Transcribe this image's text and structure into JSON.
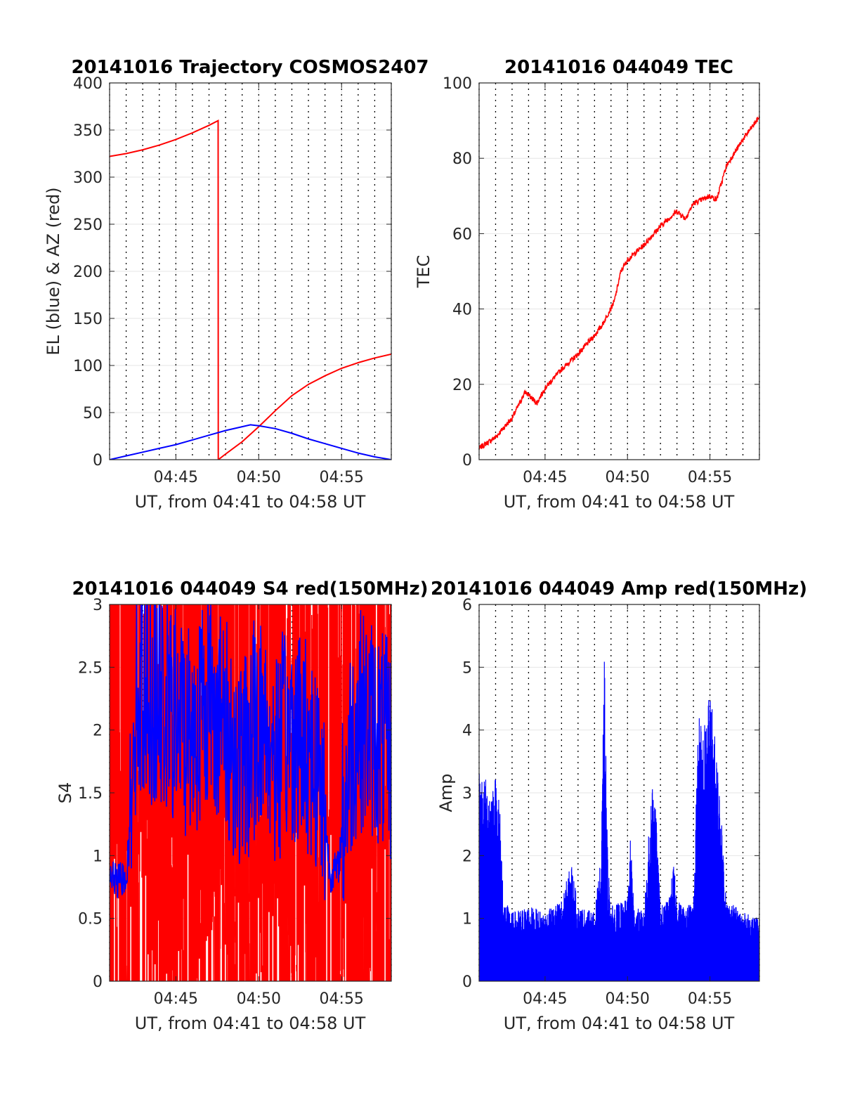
{
  "chart_data": [
    {
      "type": "line",
      "title": "20141016 Trajectory COSMOS2407",
      "xlabel": "UT, from 04:41 to 04:58 UT",
      "ylabel": "EL (blue) & AZ (red)",
      "xlim": [
        0,
        17
      ],
      "ylim": [
        0,
        400
      ],
      "x_ticks": [
        {
          "value": 4,
          "label": "04:45"
        },
        {
          "value": 9,
          "label": "04:50"
        },
        {
          "value": 14,
          "label": "04:55"
        }
      ],
      "y_ticks": [
        {
          "value": 0,
          "label": "0"
        },
        {
          "value": 50,
          "label": "50"
        },
        {
          "value": 100,
          "label": "100"
        },
        {
          "value": 150,
          "label": "150"
        },
        {
          "value": 200,
          "label": "200"
        },
        {
          "value": 250,
          "label": "250"
        },
        {
          "value": 300,
          "label": "300"
        },
        {
          "value": 350,
          "label": "350"
        },
        {
          "value": 400,
          "label": "400"
        }
      ],
      "grid": true,
      "series": [
        {
          "color": "#ff0000",
          "x": [
            0,
            1,
            2,
            3,
            4,
            5,
            6,
            6.55,
            6.56,
            7,
            8,
            9,
            10,
            11,
            12,
            13,
            14,
            15,
            16,
            17
          ],
          "values": [
            322,
            325,
            329,
            334,
            340,
            347,
            355,
            360,
            0,
            6,
            19,
            35,
            52,
            68,
            80,
            89,
            97,
            103,
            108,
            112
          ]
        },
        {
          "color": "#0000ff",
          "x": [
            0,
            1,
            2,
            3,
            4,
            5,
            6,
            7,
            8,
            8.5,
            9,
            10,
            11,
            12,
            13,
            14,
            15,
            16,
            17
          ],
          "values": [
            0,
            4,
            8,
            12,
            16,
            21,
            26,
            31,
            35,
            37,
            36,
            33,
            28,
            22,
            17,
            12,
            7,
            3,
            0
          ]
        }
      ]
    },
    {
      "type": "line",
      "title": "20141016 044049 TEC",
      "xlabel": "UT, from 04:41 to 04:58 UT",
      "ylabel": "TEC",
      "xlim": [
        0,
        17
      ],
      "ylim": [
        0,
        100
      ],
      "x_ticks": [
        {
          "value": 4,
          "label": "04:45"
        },
        {
          "value": 9,
          "label": "04:50"
        },
        {
          "value": 14,
          "label": "04:55"
        }
      ],
      "y_ticks": [
        {
          "value": 0,
          "label": "0"
        },
        {
          "value": 20,
          "label": "20"
        },
        {
          "value": 40,
          "label": "40"
        },
        {
          "value": 60,
          "label": "60"
        },
        {
          "value": 80,
          "label": "80"
        },
        {
          "value": 100,
          "label": "100"
        }
      ],
      "grid": true,
      "series": [
        {
          "color": "#ff0000",
          "noise": 0.7,
          "x": [
            0,
            1,
            2,
            2.8,
            3.5,
            4,
            5,
            6,
            7,
            7.5,
            8.2,
            8.6,
            9,
            10,
            11,
            12,
            12.5,
            13,
            14,
            14.4,
            15,
            16,
            17
          ],
          "values": [
            3,
            6,
            11,
            18,
            15,
            19,
            24,
            28,
            33,
            36,
            42,
            50,
            53,
            57,
            62,
            66,
            64,
            68,
            70,
            69,
            78,
            85,
            91
          ]
        }
      ]
    },
    {
      "type": "line",
      "title": "20141016 044049 S4 red(150MHz)",
      "xlabel": "UT, from 04:41 to 04:58 UT",
      "ylabel": "S4",
      "xlim": [
        0,
        17
      ],
      "ylim": [
        0,
        3
      ],
      "x_ticks": [
        {
          "value": 4,
          "label": "04:45"
        },
        {
          "value": 9,
          "label": "04:50"
        },
        {
          "value": 14,
          "label": "04:55"
        }
      ],
      "y_ticks": [
        {
          "value": 0,
          "label": "0"
        },
        {
          "value": 0.5,
          "label": "0.5"
        },
        {
          "value": 1,
          "label": "1"
        },
        {
          "value": 1.5,
          "label": "1.5"
        },
        {
          "value": 2,
          "label": "2"
        },
        {
          "value": 2.5,
          "label": "2.5"
        },
        {
          "value": 3,
          "label": "3"
        }
      ],
      "grid": true,
      "series": [
        {
          "color": "#ff0000",
          "style": "spiky",
          "x": [
            0,
            1,
            1.3,
            3,
            5,
            7,
            9,
            11,
            12.8,
            13.2,
            14,
            15,
            16,
            17
          ],
          "values": [
            3,
            3,
            3,
            3,
            3,
            3,
            3,
            3,
            3,
            3,
            3,
            3,
            3,
            3
          ]
        },
        {
          "color": "#0000ff",
          "x": [
            0,
            0.5,
            1,
            1.2,
            1.4,
            2,
            3,
            4,
            5,
            6,
            7,
            8,
            9,
            10,
            11,
            12,
            12.8,
            13.3,
            13.8,
            14.5,
            15,
            16,
            17
          ],
          "values": [
            0.85,
            0.78,
            0.85,
            1.1,
            2.1,
            2.4,
            2.2,
            2.1,
            2.0,
            2.3,
            2.0,
            1.7,
            2.1,
            1.8,
            2.0,
            1.9,
            1.6,
            0.85,
            0.9,
            1.8,
            2.1,
            2.0,
            1.8
          ]
        }
      ]
    },
    {
      "type": "line",
      "title": "20141016 044049 Amp red(150MHz)",
      "xlabel": "UT, from 04:41 to 04:58 UT",
      "ylabel": "Amp",
      "xlim": [
        0,
        17
      ],
      "ylim": [
        0,
        6
      ],
      "x_ticks": [
        {
          "value": 4,
          "label": "04:45"
        },
        {
          "value": 9,
          "label": "04:50"
        },
        {
          "value": 14,
          "label": "04:55"
        }
      ],
      "y_ticks": [
        {
          "value": 0,
          "label": "0"
        },
        {
          "value": 1,
          "label": "1"
        },
        {
          "value": 2,
          "label": "2"
        },
        {
          "value": 3,
          "label": "3"
        },
        {
          "value": 4,
          "label": "4"
        },
        {
          "value": 5,
          "label": "5"
        },
        {
          "value": 6,
          "label": "6"
        }
      ],
      "grid": true,
      "series": [
        {
          "color": "#0000ff",
          "style": "dense",
          "x": [
            0,
            0.5,
            1,
            1.2,
            1.5,
            2,
            3,
            4,
            5,
            5.6,
            6,
            7,
            7.4,
            7.6,
            7.8,
            8,
            9,
            9.2,
            9.4,
            10,
            10.6,
            10.8,
            11,
            11.5,
            11.8,
            12,
            12.5,
            13,
            13.3,
            13.6,
            14,
            14.5,
            15,
            16,
            17
          ],
          "values": [
            3.4,
            3.2,
            3.3,
            3.1,
            1.3,
            1.1,
            1.2,
            1.1,
            1.3,
            1.9,
            1.2,
            1.1,
            2.0,
            5.2,
            2.0,
            1.2,
            1.3,
            2.4,
            1.2,
            1.1,
            3.7,
            2.2,
            1.2,
            1.3,
            1.9,
            1.3,
            1.2,
            1.3,
            4.3,
            4.0,
            4.7,
            3.4,
            1.3,
            1.1,
            1.0
          ]
        }
      ]
    }
  ]
}
